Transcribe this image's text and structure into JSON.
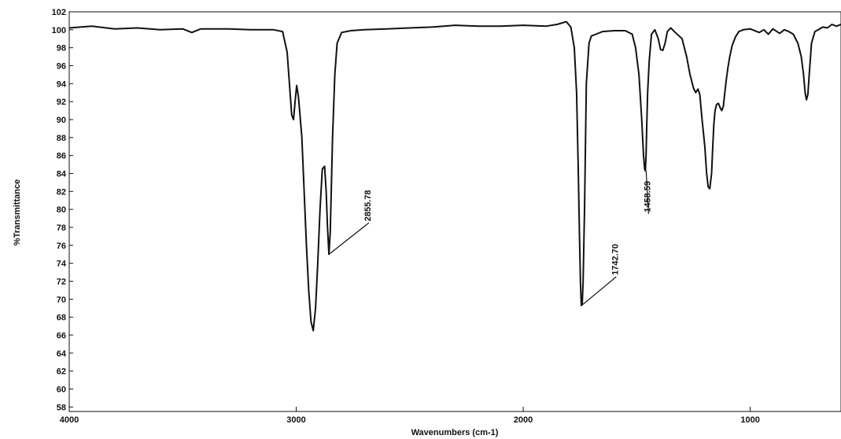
{
  "chart_data": {
    "type": "line",
    "title": "",
    "xlabel": "Wavenumbers (cm-1)",
    "ylabel": "%Transmittance",
    "xlim": [
      4000,
      600
    ],
    "ylim": [
      57.5,
      102
    ],
    "x_reversed": true,
    "grid": false,
    "x_ticks": [
      4000,
      3000,
      2000,
      1000
    ],
    "y_ticks": [
      58,
      60,
      62,
      64,
      66,
      68,
      70,
      72,
      74,
      76,
      78,
      80,
      82,
      84,
      86,
      88,
      90,
      92,
      94,
      96,
      98,
      100,
      102
    ],
    "line_color": "#111111",
    "series": [
      {
        "x": [
          4000,
          3900,
          3800,
          3700,
          3600,
          3500,
          3460,
          3420,
          3300,
          3200,
          3100,
          3060,
          3040,
          3030,
          3020,
          3012,
          3005,
          2998,
          2990,
          2975,
          2965,
          2955,
          2945,
          2935,
          2925,
          2915,
          2905,
          2895,
          2885,
          2875,
          2868,
          2862,
          2856,
          2850,
          2840,
          2830,
          2820,
          2800,
          2760,
          2700,
          2600,
          2500,
          2400,
          2300,
          2200,
          2100,
          2000,
          1900,
          1850,
          1810,
          1790,
          1775,
          1765,
          1758,
          1752,
          1748,
          1744,
          1740,
          1736,
          1730,
          1722,
          1710,
          1700,
          1680,
          1650,
          1600,
          1550,
          1520,
          1505,
          1490,
          1478,
          1470,
          1465,
          1462,
          1459,
          1456,
          1452,
          1445,
          1435,
          1420,
          1405,
          1395,
          1385,
          1375,
          1365,
          1350,
          1330,
          1300,
          1280,
          1265,
          1250,
          1240,
          1230,
          1222,
          1212,
          1200,
          1192,
          1185,
          1178,
          1170,
          1165,
          1160,
          1155,
          1148,
          1140,
          1132,
          1125,
          1118,
          1112,
          1105,
          1098,
          1090,
          1080,
          1065,
          1050,
          1030,
          1000,
          960,
          940,
          920,
          900,
          870,
          850,
          830,
          810,
          790,
          775,
          765,
          758,
          752,
          746,
          740,
          730,
          715,
          700,
          680,
          660,
          640,
          620,
          600
        ],
        "y": [
          100.2,
          100.4,
          100.1,
          100.2,
          100.0,
          100.1,
          99.7,
          100.1,
          100.1,
          100.0,
          100.0,
          99.8,
          97.5,
          94.0,
          90.5,
          90.0,
          92.0,
          93.8,
          92.5,
          88.0,
          82.0,
          76.0,
          71.0,
          67.5,
          66.5,
          69.0,
          74.0,
          80.0,
          84.5,
          84.8,
          82.0,
          78.0,
          75.0,
          77.5,
          88.0,
          95.0,
          98.5,
          99.7,
          99.9,
          100.0,
          100.1,
          100.2,
          100.3,
          100.5,
          100.4,
          100.4,
          100.5,
          100.4,
          100.6,
          100.9,
          100.3,
          98.0,
          93.0,
          85.0,
          77.0,
          72.0,
          69.3,
          69.5,
          72.0,
          80.0,
          94.0,
          98.5,
          99.3,
          99.5,
          99.8,
          99.9,
          99.9,
          99.5,
          98.0,
          95.0,
          90.0,
          86.0,
          84.5,
          84.3,
          86.0,
          89.0,
          93.0,
          96.5,
          99.5,
          100.0,
          99.0,
          97.8,
          97.7,
          98.5,
          99.8,
          100.2,
          99.7,
          99.0,
          97.0,
          95.0,
          93.5,
          93.0,
          93.4,
          92.8,
          90.0,
          87.0,
          84.0,
          82.5,
          82.3,
          84.0,
          87.0,
          89.5,
          91.0,
          91.7,
          91.8,
          91.3,
          91.0,
          91.5,
          93.0,
          94.5,
          95.8,
          97.0,
          98.2,
          99.2,
          99.8,
          100.0,
          100.1,
          99.7,
          100.0,
          99.5,
          100.1,
          99.6,
          100.0,
          99.8,
          99.5,
          98.5,
          97.0,
          95.0,
          93.0,
          92.2,
          92.8,
          95.0,
          98.5,
          99.8,
          100.0,
          100.3,
          100.2,
          100.6,
          100.4,
          100.6
        ]
      }
    ],
    "annotations": [
      {
        "label": "2855.78",
        "x": 2855.78,
        "y": 75.0,
        "text_x": 2680,
        "text_y": 78.5
      },
      {
        "label": "1742.70",
        "x": 1742.7,
        "y": 69.3,
        "text_x": 1590,
        "text_y": 72.5
      },
      {
        "label": "1458.59",
        "x": 1458.59,
        "y": 84.3,
        "text_x": 1448,
        "text_y": 79.5
      }
    ]
  }
}
